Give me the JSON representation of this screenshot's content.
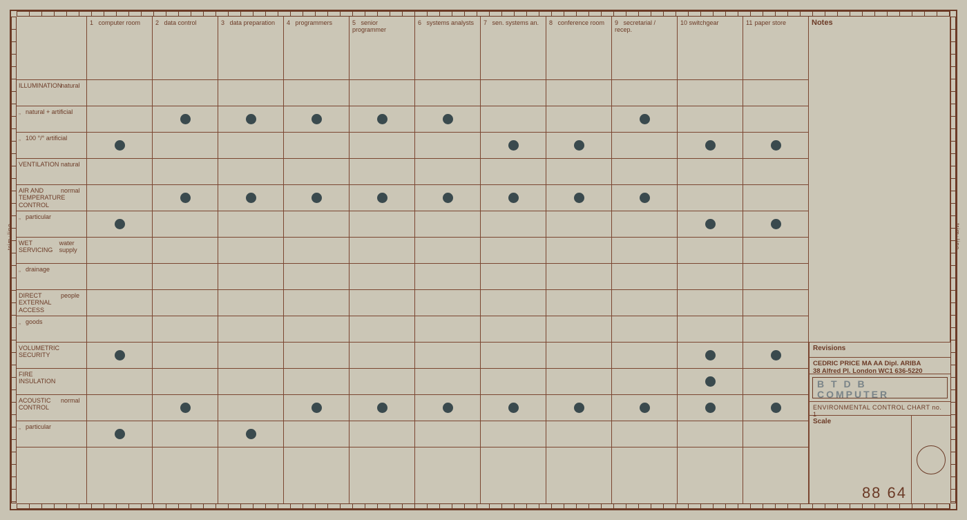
{
  "columns": [
    {
      "num": "1",
      "label": "computer room"
    },
    {
      "num": "2",
      "label": "data control"
    },
    {
      "num": "3",
      "label": "data preparation"
    },
    {
      "num": "4",
      "label": "programmers"
    },
    {
      "num": "5",
      "label": "senior programmer"
    },
    {
      "num": "6",
      "label": "systems analysts"
    },
    {
      "num": "7",
      "label": "sen. systems an."
    },
    {
      "num": "8",
      "label": "conference room"
    },
    {
      "num": "9",
      "label": "secretarial / recep."
    },
    {
      "num": "10",
      "label": "switchgear"
    },
    {
      "num": "11",
      "label": "paper store"
    }
  ],
  "rows": [
    {
      "cat": "ILLUMINATION",
      "sub": "natural"
    },
    {
      "cat": "\"",
      "sub": "natural + artificial"
    },
    {
      "cat": "\"",
      "sub": "100 °/° artificial"
    },
    {
      "cat": "VENTILATION",
      "sub": "natural"
    },
    {
      "cat": "AIR AND TEMPERATURE CONTROL",
      "sub": "normal"
    },
    {
      "cat": "\"",
      "sub": "particular"
    },
    {
      "cat": "WET SERVICING",
      "sub": "water supply"
    },
    {
      "cat": "\"",
      "sub": "drainage"
    },
    {
      "cat": "DIRECT EXTERNAL ACCESS",
      "sub": "people"
    },
    {
      "cat": "\"",
      "sub": "goods"
    },
    {
      "cat": "VOLUMETRIC SECURITY",
      "sub": ""
    },
    {
      "cat": "FIRE INSULATION",
      "sub": ""
    },
    {
      "cat": "ACOUSTIC CONTROL",
      "sub": "normal"
    },
    {
      "cat": "\"",
      "sub": "particular"
    }
  ],
  "dots": [
    [
      2,
      2
    ],
    [
      2,
      3
    ],
    [
      2,
      4
    ],
    [
      2,
      5
    ],
    [
      2,
      6
    ],
    [
      2,
      9
    ],
    [
      3,
      1
    ],
    [
      3,
      7
    ],
    [
      3,
      8
    ],
    [
      3,
      10
    ],
    [
      3,
      11
    ],
    [
      5,
      2
    ],
    [
      5,
      3
    ],
    [
      5,
      4
    ],
    [
      5,
      5
    ],
    [
      5,
      6
    ],
    [
      5,
      7
    ],
    [
      5,
      8
    ],
    [
      5,
      9
    ],
    [
      6,
      1
    ],
    [
      6,
      10
    ],
    [
      6,
      11
    ],
    [
      11,
      1
    ],
    [
      11,
      10
    ],
    [
      11,
      11
    ],
    [
      12,
      10
    ],
    [
      13,
      2
    ],
    [
      13,
      4
    ],
    [
      13,
      5
    ],
    [
      13,
      6
    ],
    [
      13,
      7
    ],
    [
      13,
      8
    ],
    [
      13,
      9
    ],
    [
      13,
      10
    ],
    [
      13,
      11
    ],
    [
      14,
      1
    ],
    [
      14,
      3
    ]
  ],
  "notes_label": "Notes",
  "titleblock": {
    "revisions": "Revisions",
    "firm_line1": "CEDRIC PRICE MA AA Dipl. ARIBA",
    "firm_line2": "38 Alfred Pl. London WC1 636-5220",
    "project_line1": "B T D B",
    "project_line2": "COMPUTER",
    "drawing_title": "ENVIRONMENTAL CONTROL CHART no. 1",
    "scale_label": "Scale",
    "sheet_no": "88 64"
  },
  "trim_label": "trim↓line",
  "colors": {
    "paper": "#cbc6b6",
    "ink": "#6b3a26",
    "dot": "#3a4a4e"
  }
}
